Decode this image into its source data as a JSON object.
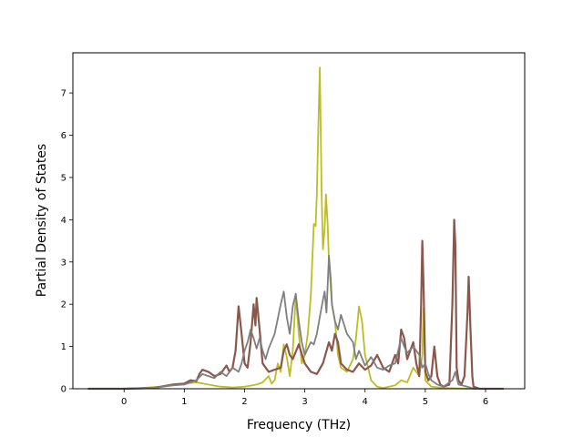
{
  "chart_data": {
    "type": "line",
    "title": "",
    "xlabel": "Frequency (THz)",
    "ylabel": "Partial Density of States",
    "xlim": [
      -0.85,
      6.65
    ],
    "ylim": [
      0,
      7.95
    ],
    "xticks": [
      0,
      1,
      2,
      3,
      4,
      5,
      6
    ],
    "yticks": [
      0,
      1,
      2,
      3,
      4,
      5,
      6,
      7
    ],
    "grid": false,
    "legend": "none",
    "series": [
      {
        "color": "#bcbd22",
        "stroke": 1.8,
        "points": [
          [
            -0.6,
            0
          ],
          [
            0,
            0
          ],
          [
            0.3,
            0.02
          ],
          [
            0.6,
            0.05
          ],
          [
            0.8,
            0.08
          ],
          [
            1.0,
            0.12
          ],
          [
            1.2,
            0.15
          ],
          [
            1.4,
            0.1
          ],
          [
            1.6,
            0.05
          ],
          [
            1.8,
            0.03
          ],
          [
            2.0,
            0.05
          ],
          [
            2.2,
            0.1
          ],
          [
            2.3,
            0.15
          ],
          [
            2.4,
            0.3
          ],
          [
            2.45,
            0.12
          ],
          [
            2.5,
            0.2
          ],
          [
            2.55,
            0.6
          ],
          [
            2.6,
            0.4
          ],
          [
            2.65,
            1.05
          ],
          [
            2.7,
            0.75
          ],
          [
            2.75,
            0.3
          ],
          [
            2.8,
            0.9
          ],
          [
            2.85,
            2.2
          ],
          [
            2.9,
            1.3
          ],
          [
            2.95,
            0.6
          ],
          [
            3.0,
            0.8
          ],
          [
            3.05,
            1.3
          ],
          [
            3.1,
            2.2
          ],
          [
            3.15,
            3.9
          ],
          [
            3.18,
            3.85
          ],
          [
            3.2,
            4.6
          ],
          [
            3.23,
            6.5
          ],
          [
            3.25,
            7.6
          ],
          [
            3.28,
            4.6
          ],
          [
            3.3,
            3.3
          ],
          [
            3.33,
            3.8
          ],
          [
            3.35,
            4.6
          ],
          [
            3.38,
            3.9
          ],
          [
            3.4,
            3.0
          ],
          [
            3.45,
            2.0
          ],
          [
            3.5,
            1.6
          ],
          [
            3.55,
            0.8
          ],
          [
            3.6,
            0.5
          ],
          [
            3.7,
            0.4
          ],
          [
            3.8,
            0.7
          ],
          [
            3.85,
            1.2
          ],
          [
            3.9,
            1.95
          ],
          [
            3.95,
            1.6
          ],
          [
            4.0,
            0.8
          ],
          [
            4.05,
            0.5
          ],
          [
            4.1,
            0.2
          ],
          [
            4.2,
            0.05
          ],
          [
            4.3,
            0.02
          ],
          [
            4.5,
            0.08
          ],
          [
            4.6,
            0.2
          ],
          [
            4.7,
            0.15
          ],
          [
            4.8,
            0.5
          ],
          [
            4.9,
            0.3
          ],
          [
            4.95,
            0.8
          ],
          [
            4.97,
            1.9
          ],
          [
            5.0,
            0.2
          ],
          [
            5.1,
            0.05
          ],
          [
            5.3,
            0.02
          ],
          [
            5.5,
            0.01
          ],
          [
            5.8,
            0
          ],
          [
            6.3,
            0
          ]
        ]
      },
      {
        "color": "#8c564b",
        "stroke": 2.2,
        "points": [
          [
            -0.6,
            0
          ],
          [
            0,
            0
          ],
          [
            0.5,
            0.02
          ],
          [
            0.8,
            0.1
          ],
          [
            1.0,
            0.12
          ],
          [
            1.1,
            0.2
          ],
          [
            1.2,
            0.18
          ],
          [
            1.25,
            0.35
          ],
          [
            1.3,
            0.45
          ],
          [
            1.4,
            0.4
          ],
          [
            1.5,
            0.3
          ],
          [
            1.6,
            0.35
          ],
          [
            1.7,
            0.55
          ],
          [
            1.75,
            0.4
          ],
          [
            1.8,
            0.5
          ],
          [
            1.85,
            0.9
          ],
          [
            1.9,
            1.95
          ],
          [
            1.95,
            1.3
          ],
          [
            2.0,
            0.6
          ],
          [
            2.05,
            0.5
          ],
          [
            2.1,
            1.1
          ],
          [
            2.15,
            2.0
          ],
          [
            2.18,
            1.5
          ],
          [
            2.2,
            2.15
          ],
          [
            2.25,
            1.4
          ],
          [
            2.3,
            0.6
          ],
          [
            2.35,
            0.5
          ],
          [
            2.4,
            0.4
          ],
          [
            2.5,
            0.45
          ],
          [
            2.6,
            0.5
          ],
          [
            2.65,
            0.9
          ],
          [
            2.7,
            1.05
          ],
          [
            2.75,
            0.8
          ],
          [
            2.8,
            0.7
          ],
          [
            2.9,
            1.05
          ],
          [
            3.0,
            0.6
          ],
          [
            3.1,
            0.4
          ],
          [
            3.2,
            0.35
          ],
          [
            3.3,
            0.6
          ],
          [
            3.4,
            1.1
          ],
          [
            3.45,
            0.9
          ],
          [
            3.5,
            1.3
          ],
          [
            3.55,
            1.1
          ],
          [
            3.6,
            0.6
          ],
          [
            3.7,
            0.45
          ],
          [
            3.8,
            0.4
          ],
          [
            3.9,
            0.6
          ],
          [
            4.0,
            0.45
          ],
          [
            4.1,
            0.55
          ],
          [
            4.2,
            0.8
          ],
          [
            4.3,
            0.5
          ],
          [
            4.4,
            0.4
          ],
          [
            4.5,
            0.8
          ],
          [
            4.55,
            0.6
          ],
          [
            4.6,
            1.4
          ],
          [
            4.65,
            1.2
          ],
          [
            4.7,
            0.7
          ],
          [
            4.75,
            0.9
          ],
          [
            4.8,
            1.1
          ],
          [
            4.85,
            0.6
          ],
          [
            4.9,
            0.3
          ],
          [
            4.93,
            2.0
          ],
          [
            4.95,
            3.5
          ],
          [
            4.97,
            2.5
          ],
          [
            5.0,
            0.4
          ],
          [
            5.05,
            0.2
          ],
          [
            5.1,
            0.3
          ],
          [
            5.15,
            1.0
          ],
          [
            5.2,
            0.3
          ],
          [
            5.25,
            0.1
          ],
          [
            5.3,
            0.05
          ],
          [
            5.4,
            0.1
          ],
          [
            5.45,
            2.0
          ],
          [
            5.48,
            4.0
          ],
          [
            5.5,
            3.4
          ],
          [
            5.52,
            0.5
          ],
          [
            5.55,
            0.2
          ],
          [
            5.6,
            0.1
          ],
          [
            5.65,
            0.3
          ],
          [
            5.7,
            1.8
          ],
          [
            5.72,
            2.65
          ],
          [
            5.75,
            1.4
          ],
          [
            5.78,
            0.3
          ],
          [
            5.8,
            0.05
          ],
          [
            5.9,
            0
          ],
          [
            6.3,
            0
          ]
        ]
      },
      {
        "color": "#7f7f7f",
        "stroke": 1.8,
        "points": [
          [
            -0.6,
            0
          ],
          [
            0,
            0
          ],
          [
            0.5,
            0.02
          ],
          [
            0.8,
            0.08
          ],
          [
            1.0,
            0.1
          ],
          [
            1.1,
            0.15
          ],
          [
            1.2,
            0.2
          ],
          [
            1.3,
            0.35
          ],
          [
            1.4,
            0.3
          ],
          [
            1.5,
            0.25
          ],
          [
            1.6,
            0.4
          ],
          [
            1.7,
            0.3
          ],
          [
            1.8,
            0.5
          ],
          [
            1.9,
            0.4
          ],
          [
            1.95,
            0.6
          ],
          [
            2.0,
            0.9
          ],
          [
            2.05,
            1.1
          ],
          [
            2.1,
            1.4
          ],
          [
            2.15,
            1.2
          ],
          [
            2.2,
            0.95
          ],
          [
            2.25,
            1.2
          ],
          [
            2.3,
            0.9
          ],
          [
            2.35,
            0.7
          ],
          [
            2.4,
            0.95
          ],
          [
            2.5,
            1.3
          ],
          [
            2.6,
            2.0
          ],
          [
            2.65,
            2.3
          ],
          [
            2.7,
            1.7
          ],
          [
            2.75,
            1.3
          ],
          [
            2.8,
            1.95
          ],
          [
            2.85,
            2.25
          ],
          [
            2.9,
            1.6
          ],
          [
            2.95,
            1.1
          ],
          [
            3.0,
            0.8
          ],
          [
            3.05,
            0.95
          ],
          [
            3.1,
            1.1
          ],
          [
            3.15,
            1.05
          ],
          [
            3.2,
            1.3
          ],
          [
            3.25,
            1.7
          ],
          [
            3.3,
            2.1
          ],
          [
            3.33,
            2.3
          ],
          [
            3.36,
            1.8
          ],
          [
            3.4,
            3.15
          ],
          [
            3.43,
            2.6
          ],
          [
            3.45,
            2.0
          ],
          [
            3.5,
            1.6
          ],
          [
            3.55,
            1.4
          ],
          [
            3.6,
            1.75
          ],
          [
            3.7,
            1.3
          ],
          [
            3.8,
            1.1
          ],
          [
            3.85,
            0.7
          ],
          [
            3.9,
            0.9
          ],
          [
            4.0,
            0.55
          ],
          [
            4.1,
            0.75
          ],
          [
            4.2,
            0.5
          ],
          [
            4.3,
            0.45
          ],
          [
            4.4,
            0.55
          ],
          [
            4.5,
            0.6
          ],
          [
            4.6,
            1.2
          ],
          [
            4.65,
            1.0
          ],
          [
            4.7,
            0.85
          ],
          [
            4.8,
            1.0
          ],
          [
            4.9,
            0.8
          ],
          [
            4.95,
            0.5
          ],
          [
            5.0,
            0.6
          ],
          [
            5.05,
            0.35
          ],
          [
            5.1,
            0.2
          ],
          [
            5.2,
            0.1
          ],
          [
            5.3,
            0.05
          ],
          [
            5.45,
            0.2
          ],
          [
            5.5,
            0.4
          ],
          [
            5.55,
            0.1
          ],
          [
            5.7,
            0.05
          ],
          [
            5.8,
            0
          ],
          [
            6.3,
            0
          ]
        ]
      }
    ]
  }
}
